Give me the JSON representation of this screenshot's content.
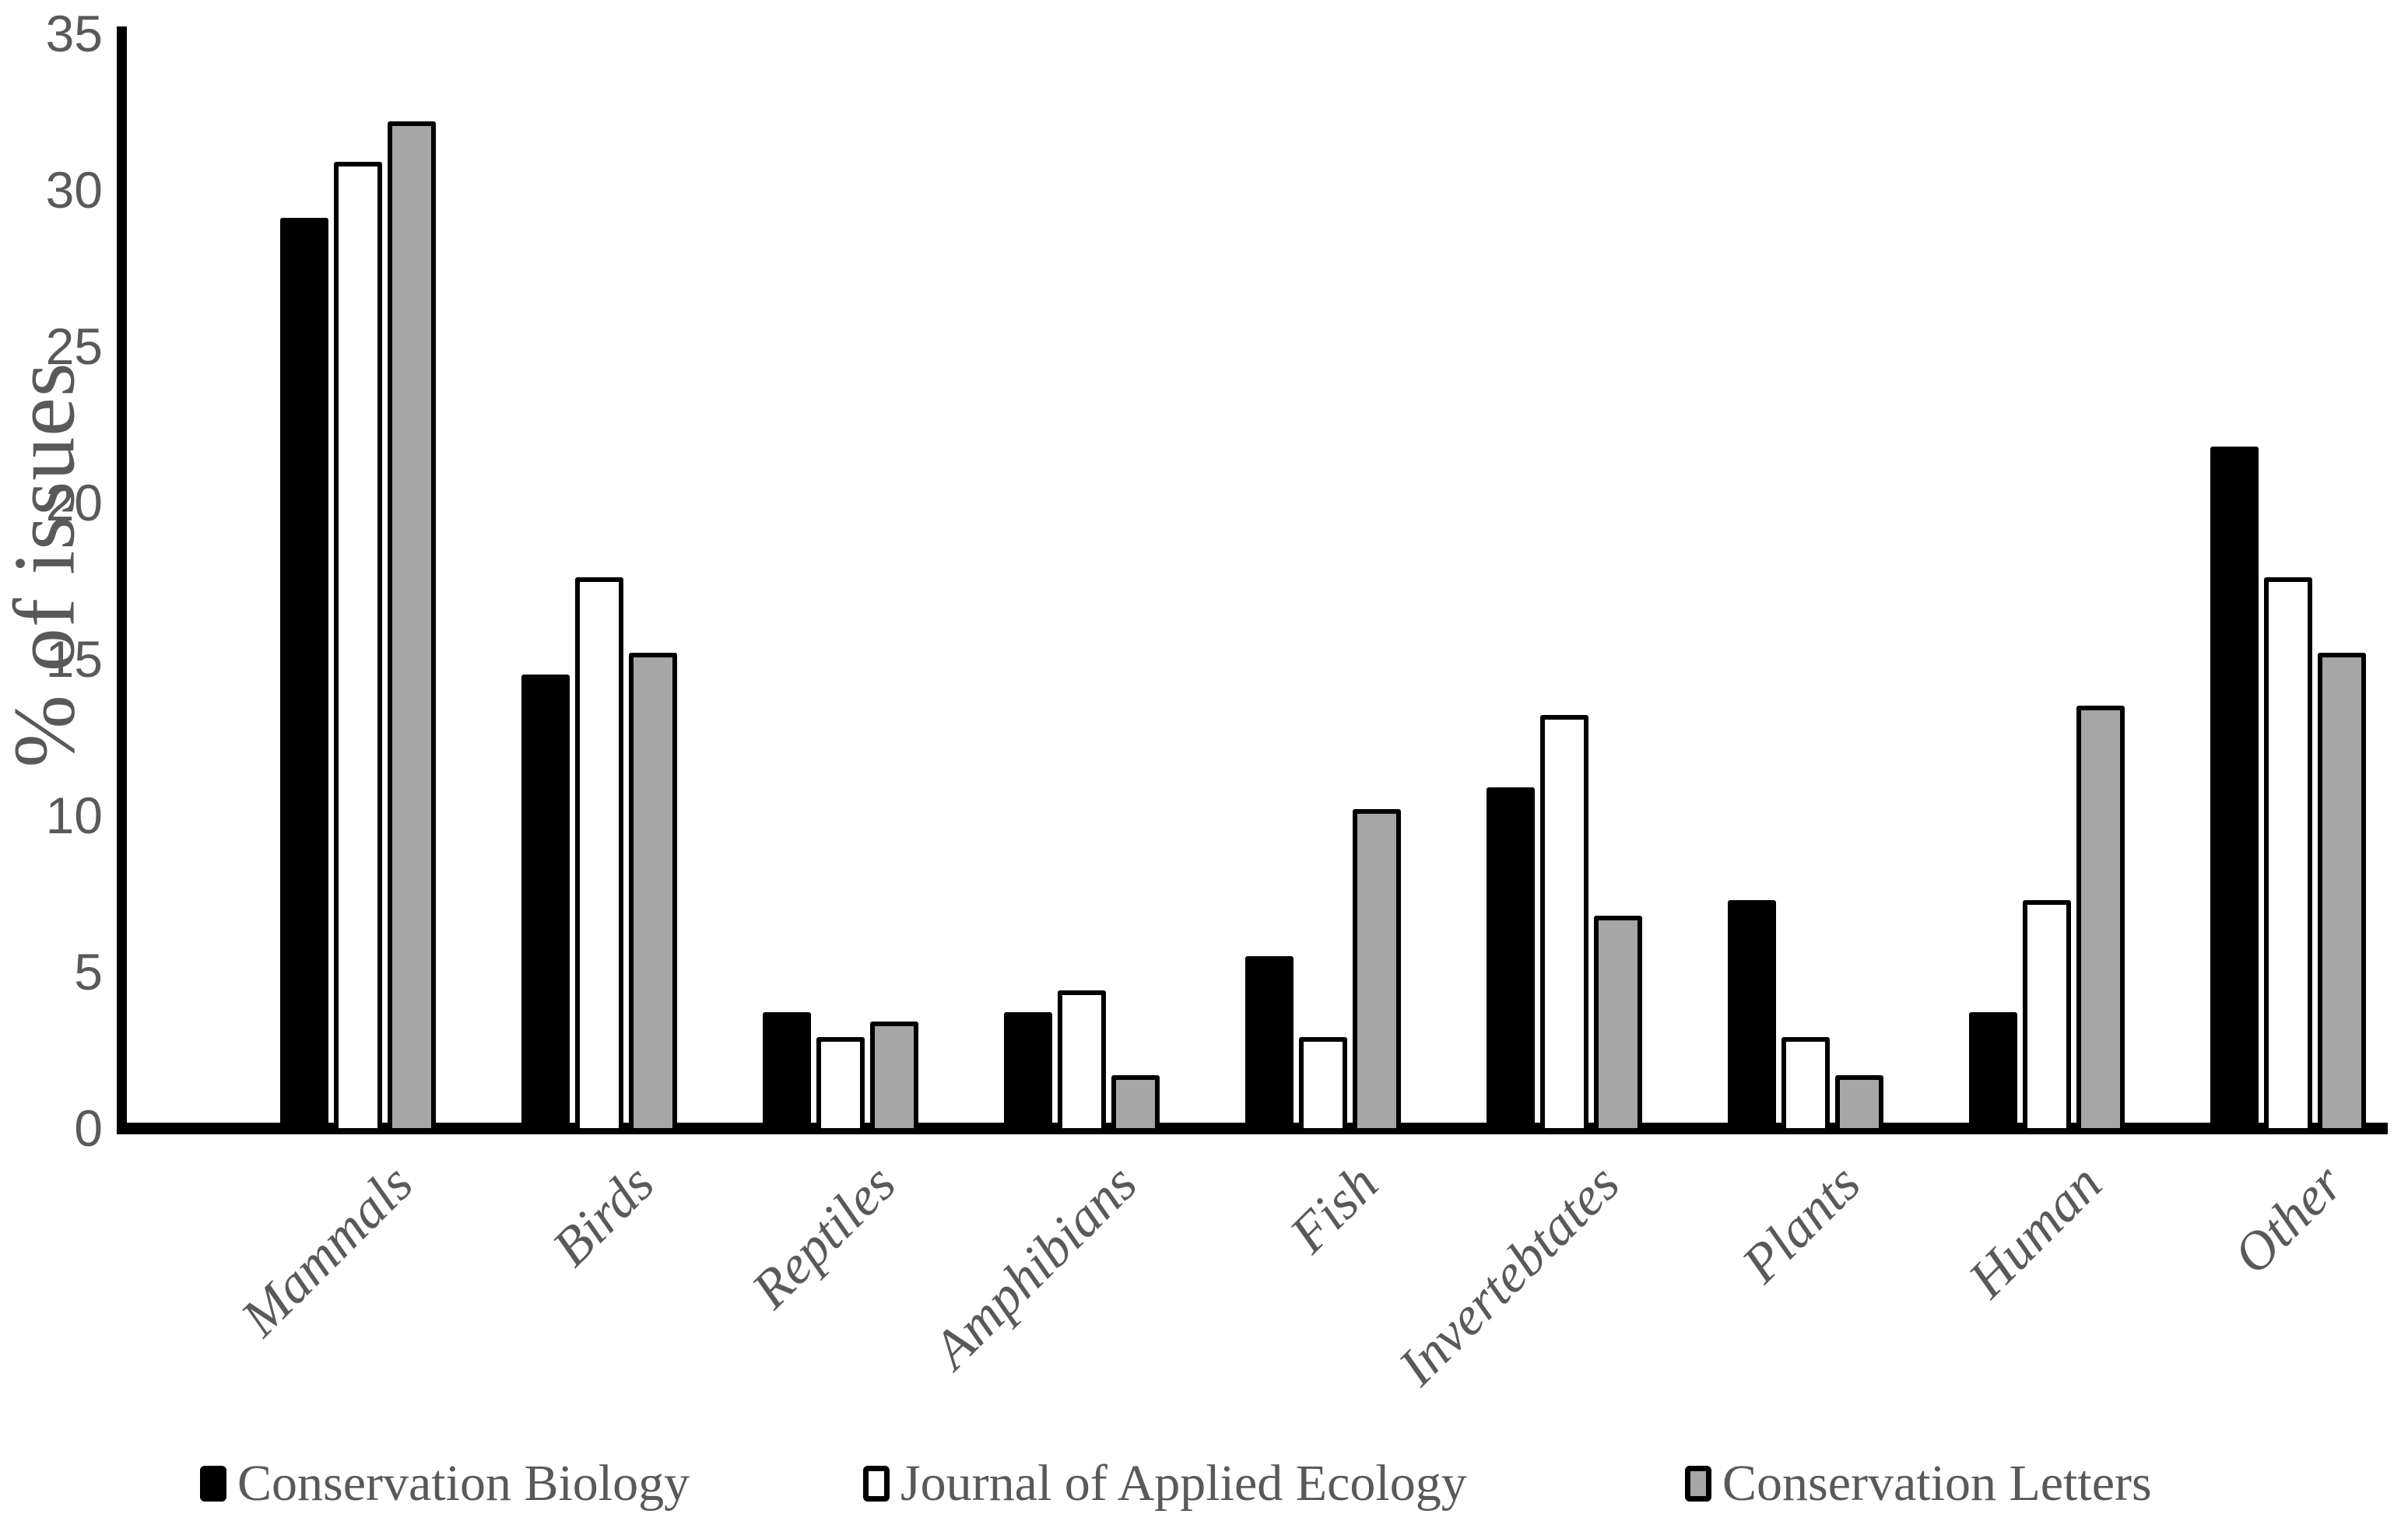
{
  "chart_data": {
    "type": "bar",
    "title": "",
    "xlabel": "",
    "ylabel": "% of issues",
    "ylim": [
      0,
      35
    ],
    "yticks": [
      0,
      5,
      10,
      15,
      20,
      25,
      30,
      35
    ],
    "grid": false,
    "legend_position": "bottom",
    "categories": [
      "Mammals",
      "Birds",
      "Reptiles",
      "Amphibians",
      "Fish",
      "Invertebtates",
      "Plants",
      "Human",
      "Other"
    ],
    "series": [
      {
        "name": "Conservation Biology",
        "fill": "#000000",
        "border": "#000000",
        "values": [
          29.1,
          14.5,
          3.7,
          3.7,
          5.5,
          10.9,
          7.3,
          3.7,
          21.8
        ]
      },
      {
        "name": "Journal of Applied Ecology",
        "fill": "#ffffff",
        "border": "#000000",
        "values": [
          30.9,
          17.6,
          2.9,
          4.4,
          2.9,
          13.2,
          2.9,
          7.3,
          17.6
        ]
      },
      {
        "name": "Conservation Letters",
        "fill": "#a6a6a6",
        "border": "#000000",
        "values": [
          32.2,
          15.2,
          3.4,
          1.7,
          10.2,
          6.8,
          1.7,
          13.5,
          15.2
        ]
      }
    ],
    "axis_color": "#000000",
    "text_color": "#595959"
  }
}
